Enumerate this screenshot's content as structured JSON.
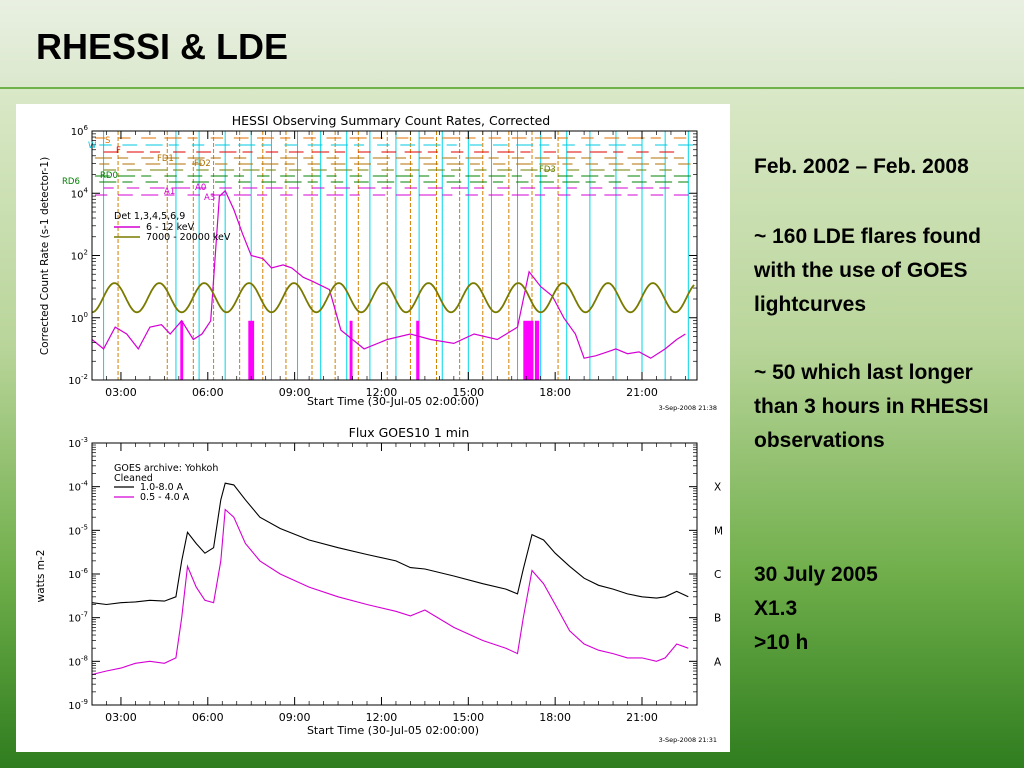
{
  "slide": {
    "title": "RHESSI & LDE",
    "notes": {
      "period": "Feb. 2002 – Feb. 2008",
      "count_line": "~ 160 LDE flares found with the use of GOES lightcurves",
      "long_line": "~ 50 which last longer than 3 hours in RHESSI observations",
      "event_date": "30 July 2005",
      "event_class": "X1.3",
      "event_duration": ">10 h"
    }
  },
  "chart_data": [
    {
      "type": "line",
      "title": "HESSI Observing Summary Count Rates, Corrected",
      "ylabel": "Corrected Count Rate (s-1 detector-1)",
      "xlabel": "Start Time (30-Jul-05 02:00:00)",
      "stamp": "3-Sep-2008 21:38",
      "x_ticks": [
        "03:00",
        "06:00",
        "09:00",
        "12:00",
        "15:00",
        "18:00",
        "21:00"
      ],
      "y_ticks": [
        "10-2",
        "10 0",
        "10 2",
        "10 4",
        "10 6"
      ],
      "y_scale": "log",
      "ylim": [
        0.01,
        1000000
      ],
      "xlim_hours": [
        2,
        22.9
      ],
      "legend": {
        "header": "Det 1,3,4,5,6,9",
        "entries": [
          "6 - 12 keV",
          "7000 - 20000 keV"
        ]
      },
      "flag_labels": [
        "S",
        "F",
        "W",
        "FD1",
        "FD2",
        "FD3",
        "RD6",
        "RD0",
        "A0",
        "A1",
        "A3"
      ],
      "series": [
        {
          "name": "6 - 12 keV",
          "color": "#d400d4",
          "x": [
            2.0,
            2.4,
            2.8,
            3.2,
            3.6,
            4.0,
            4.4,
            4.7,
            5.1,
            5.5,
            5.8,
            6.1,
            6.4,
            6.6,
            6.9,
            7.2,
            7.5,
            7.9,
            8.2,
            8.6,
            8.9,
            9.3,
            9.6,
            10.2,
            10.6,
            11.4,
            12.2,
            13.0,
            13.7,
            14.5,
            15.2,
            16.0,
            16.7,
            17.1,
            17.5,
            17.9,
            18.3,
            18.7,
            19.0,
            19.4,
            19.8,
            20.1,
            20.5,
            20.9,
            21.3,
            21.8,
            22.2,
            22.5
          ],
          "values": [
            0.2,
            0.1,
            0.5,
            0.3,
            0.1,
            0.5,
            0.6,
            0.3,
            0.8,
            0.2,
            0.3,
            0.8,
            8000,
            12000,
            3000,
            500,
            100,
            80,
            40,
            50,
            40,
            20,
            15,
            8,
            0.4,
            0.1,
            0.2,
            0.3,
            0.2,
            0.15,
            0.3,
            0.2,
            0.5,
            30,
            10,
            5,
            1,
            0.3,
            0.05,
            0.06,
            0.08,
            0.1,
            0.07,
            0.08,
            0.05,
            0.1,
            0.2,
            0.3
          ]
        },
        {
          "name": "7000 - 20000 keV",
          "color": "#7a7a00",
          "period_hours": 1.55,
          "ymin": 1.5,
          "ymax": 13
        }
      ]
    },
    {
      "type": "line",
      "title": "Flux  GOES10 1 min",
      "ylabel": "watts m-2",
      "xlabel": "Start Time (30-Jul-05 02:00:00)",
      "stamp": "3-Sep-2008 21:31",
      "x_ticks": [
        "03:00",
        "06:00",
        "09:00",
        "12:00",
        "15:00",
        "18:00",
        "21:00"
      ],
      "y_ticks": [
        "10-9",
        "10-8",
        "10-7",
        "10-6",
        "10-5",
        "10-4",
        "10-3"
      ],
      "y_scale": "log",
      "ylim": [
        1e-09,
        0.001
      ],
      "xlim_hours": [
        2,
        22.9
      ],
      "right_labels": [
        "A",
        "B",
        "C",
        "M",
        "X"
      ],
      "legend": {
        "header": "GOES archive: Yohkoh",
        "subheader": "Cleaned",
        "entries": [
          "1.0-8.0 A",
          "0.5 - 4.0 A"
        ]
      },
      "series": [
        {
          "name": "1.0-8.0 A",
          "color": "#000000",
          "x": [
            2.0,
            2.5,
            3.0,
            3.5,
            4.0,
            4.5,
            4.9,
            5.1,
            5.3,
            5.6,
            5.9,
            6.2,
            6.45,
            6.6,
            6.9,
            7.3,
            7.8,
            8.5,
            9.5,
            10.5,
            11.5,
            12.5,
            13.0,
            13.5,
            14.5,
            15.5,
            16.3,
            16.7,
            16.9,
            17.2,
            17.6,
            18.0,
            18.5,
            19.0,
            19.5,
            20.0,
            20.5,
            21.0,
            21.5,
            21.8,
            22.2,
            22.6
          ],
          "values": [
            2.2e-07,
            2e-07,
            2.2e-07,
            2.3e-07,
            2.5e-07,
            2.4e-07,
            3e-07,
            2e-06,
            9e-06,
            5e-06,
            3e-06,
            4e-06,
            5e-05,
            0.00012,
            0.00011,
            5e-05,
            2e-05,
            1.1e-05,
            6e-06,
            4e-06,
            2.8e-06,
            2e-06,
            1.4e-06,
            1.3e-06,
            9e-07,
            6e-07,
            4.5e-07,
            3.5e-07,
            1.3e-06,
            8e-06,
            6e-06,
            3e-06,
            1.5e-06,
            8e-07,
            5.5e-07,
            4.5e-07,
            3.5e-07,
            3e-07,
            2.8e-07,
            3e-07,
            4e-07,
            3e-07
          ]
        },
        {
          "name": "0.5 - 4.0 A",
          "color": "#d400d4",
          "x": [
            2.0,
            2.5,
            3.0,
            3.5,
            4.0,
            4.5,
            4.9,
            5.1,
            5.3,
            5.6,
            5.9,
            6.2,
            6.45,
            6.6,
            6.9,
            7.3,
            7.8,
            8.5,
            9.5,
            10.5,
            11.5,
            12.5,
            13.0,
            13.5,
            14.5,
            15.5,
            16.3,
            16.7,
            16.9,
            17.2,
            17.6,
            18.0,
            18.5,
            19.0,
            19.5,
            20.0,
            20.5,
            21.0,
            21.5,
            21.8,
            22.2,
            22.6
          ],
          "values": [
            5e-09,
            6e-09,
            7e-09,
            9e-09,
            1e-08,
            9e-09,
            1.2e-08,
            1e-07,
            1.5e-06,
            5e-07,
            2.5e-07,
            2.2e-07,
            2e-06,
            3e-05,
            2e-05,
            5e-06,
            2e-06,
            1e-06,
            5e-07,
            3e-07,
            2e-07,
            1.4e-07,
            1.1e-07,
            1.5e-07,
            6e-08,
            3e-08,
            2e-08,
            1.5e-08,
            1e-07,
            1.2e-06,
            6e-07,
            2e-07,
            5e-08,
            2.5e-08,
            1.8e-08,
            1.5e-08,
            1.2e-08,
            1.2e-08,
            1e-08,
            1.2e-08,
            2.5e-08,
            2e-08
          ]
        }
      ]
    }
  ]
}
